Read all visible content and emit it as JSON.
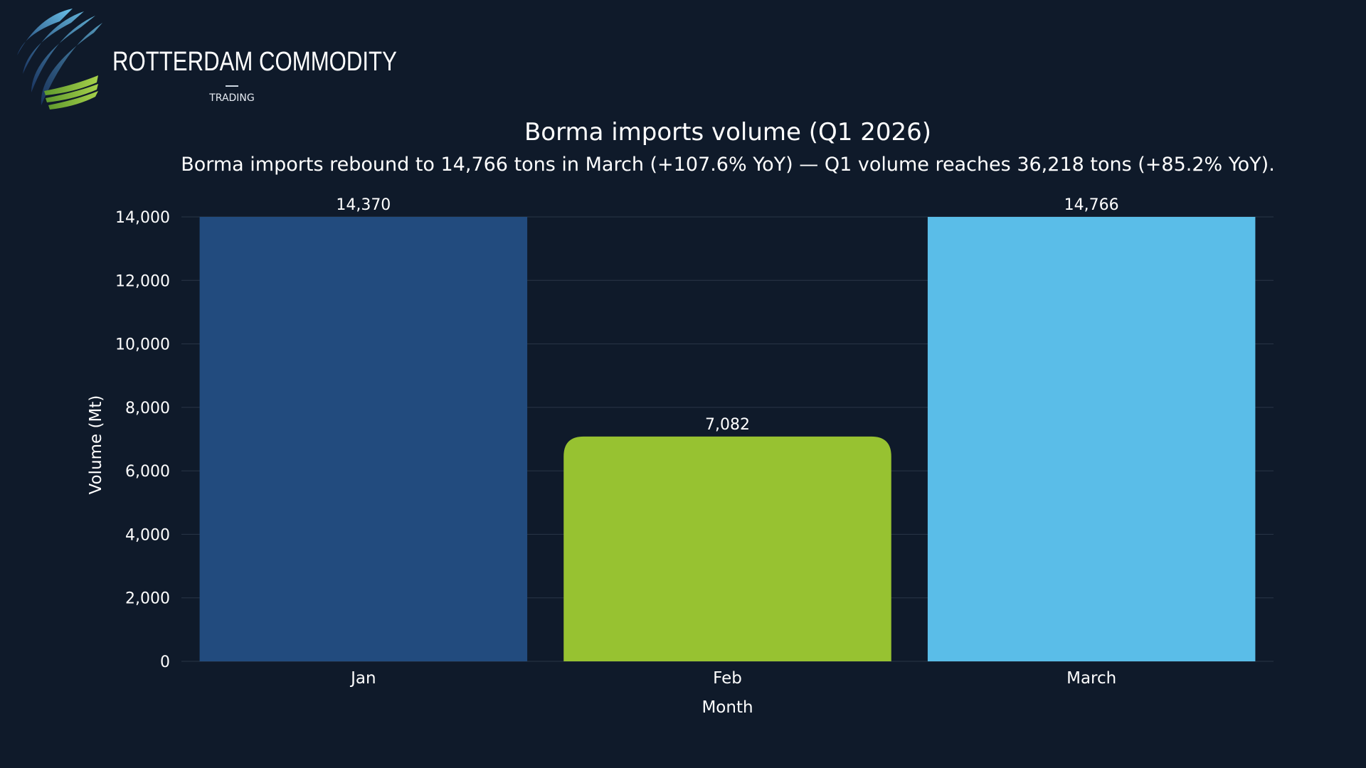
{
  "brand": {
    "name": "ROTTERDAM COMMODITY",
    "tagline": "TRADING",
    "colors": {
      "dark_blue": "#1f3d6e",
      "light_blue": "#5bb8e6",
      "green": "#8fc63f"
    }
  },
  "chart_data": {
    "type": "bar",
    "title": "Borma imports volume (Q1 2026)",
    "subtitle": "Borma imports rebound to 14,766 tons in March (+107.6% YoY) — Q1 volume reaches 36,218 tons (+85.2% YoY).",
    "xlabel": "Month",
    "ylabel": "Volume (Mt)",
    "categories": [
      "Jan",
      "Feb",
      "March"
    ],
    "values": [
      14370,
      7082,
      14766
    ],
    "data_labels": [
      "14,370",
      "7,082",
      "14,766"
    ],
    "bar_colors": [
      "#224b7e",
      "#97c231",
      "#5abde8"
    ],
    "ylim": [
      0,
      14000
    ],
    "yticks": [
      0,
      2000,
      4000,
      6000,
      8000,
      10000,
      12000,
      14000
    ],
    "ytick_labels": [
      "0",
      "2,000",
      "4,000",
      "6,000",
      "8,000",
      "10,000",
      "12,000",
      "14,000"
    ],
    "grid": true,
    "legend": "none",
    "background": "#0f1a2a",
    "grid_color": "#2a3647"
  }
}
